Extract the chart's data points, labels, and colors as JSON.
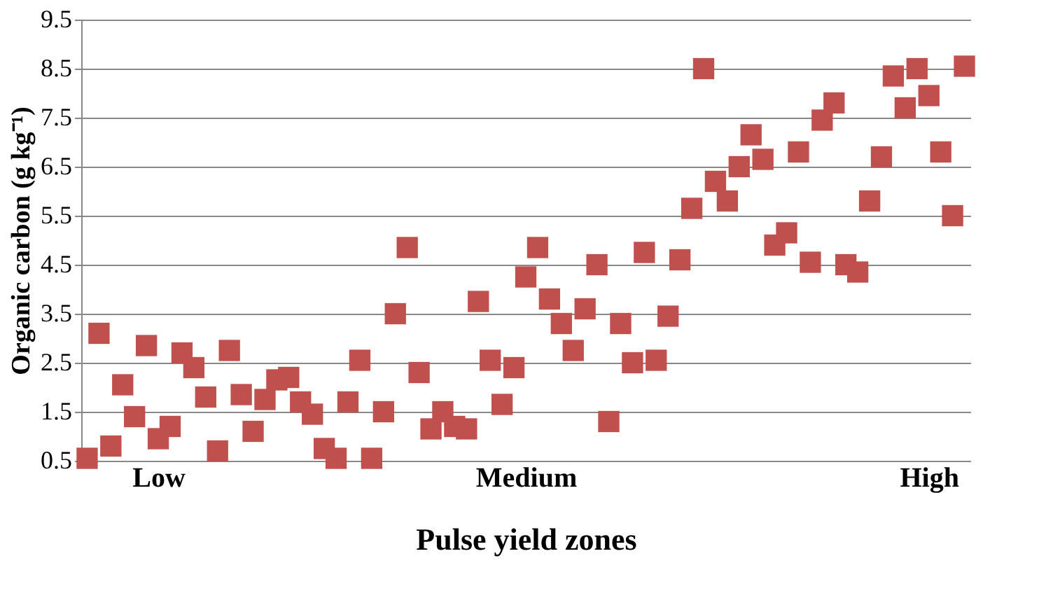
{
  "chart_data": {
    "type": "scatter",
    "xlabel": "Pulse yield zones",
    "ylabel": "Organic carbon (g kg⁻¹)",
    "categories": [
      null,
      null,
      null,
      null,
      null,
      null,
      "Low",
      null,
      null,
      null,
      null,
      null,
      null,
      null,
      null,
      null,
      null,
      null,
      null,
      null,
      null,
      null,
      null,
      null,
      null,
      null,
      null,
      null,
      null,
      null,
      null,
      null,
      null,
      null,
      null,
      null,
      null,
      "Medium",
      null,
      null,
      null,
      null,
      null,
      null,
      null,
      null,
      null,
      null,
      null,
      null,
      null,
      null,
      null,
      null,
      null,
      null,
      null,
      null,
      null,
      null,
      null,
      null,
      null,
      null,
      null,
      null,
      null,
      null,
      null,
      null,
      null,
      "High",
      null,
      null,
      null
    ],
    "series": [
      {
        "color": "#c0504d",
        "values": [
          0.55,
          3.1,
          0.8,
          2.05,
          1.4,
          2.85,
          0.95,
          1.2,
          2.7,
          2.4,
          1.8,
          0.7,
          2.75,
          1.85,
          1.1,
          1.75,
          2.15,
          2.2,
          1.7,
          1.45,
          0.75,
          0.55,
          1.7,
          2.55,
          0.55,
          1.5,
          3.5,
          4.85,
          2.3,
          1.15,
          1.5,
          1.2,
          1.15,
          3.75,
          2.55,
          1.65,
          2.4,
          4.25,
          4.85,
          3.8,
          3.3,
          2.75,
          3.6,
          4.5,
          1.3,
          3.3,
          2.5,
          4.75,
          2.55,
          3.45,
          4.6,
          5.65,
          8.5,
          6.2,
          5.8,
          6.5,
          7.15,
          6.65,
          4.9,
          5.15,
          6.8,
          4.55,
          7.45,
          7.8,
          4.5,
          4.35,
          5.8,
          6.7,
          8.35,
          7.7,
          8.5,
          7.95,
          6.8,
          5.5,
          8.55
        ]
      }
    ],
    "ylim": [
      0.5,
      9.5
    ],
    "yticks": [
      0.5,
      1.5,
      2.5,
      3.5,
      4.5,
      5.5,
      6.5,
      7.5,
      8.5,
      9.5
    ],
    "grid": "y",
    "marker": "square"
  }
}
